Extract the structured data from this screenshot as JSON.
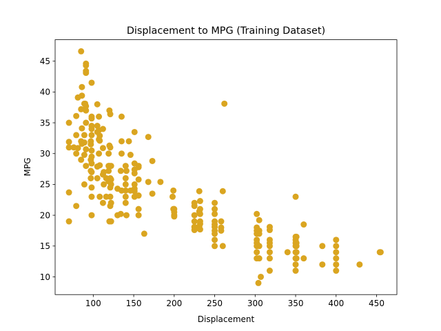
{
  "chart_data": {
    "type": "scatter",
    "title": "Displacement to MPG (Training Dataset)",
    "xlabel": "Displacement",
    "ylabel": "MPG",
    "xlim": [
      52.9,
      475.1
    ],
    "ylim": [
      7.12,
      48.48
    ],
    "x_ticks": [
      100,
      150,
      200,
      250,
      300,
      350,
      400,
      450
    ],
    "y_ticks": [
      10,
      15,
      20,
      25,
      30,
      35,
      40,
      45
    ],
    "grid": false,
    "legend": "none",
    "marker_color": "#daa520",
    "points": [
      [
        85,
        46.6
      ],
      [
        91,
        44.6
      ],
      [
        91,
        44.3
      ],
      [
        91,
        43.4
      ],
      [
        91,
        43.1
      ],
      [
        98,
        41.5
      ],
      [
        86,
        40.8
      ],
      [
        86,
        39.4
      ],
      [
        81,
        39.1
      ],
      [
        89,
        38.1
      ],
      [
        91,
        37.7
      ],
      [
        90,
        38.1
      ],
      [
        105,
        38.0
      ],
      [
        262,
        38.1
      ],
      [
        85,
        37.2
      ],
      [
        91,
        37.0
      ],
      [
        120,
        37.0
      ],
      [
        121,
        36.4
      ],
      [
        79,
        36.1
      ],
      [
        98,
        36.0
      ],
      [
        107,
        36.0
      ],
      [
        135,
        36.0
      ],
      [
        98,
        35.7
      ],
      [
        70,
        35.0
      ],
      [
        91,
        35.0
      ],
      [
        98,
        34.5
      ],
      [
        105,
        34.5
      ],
      [
        86,
        34.1
      ],
      [
        98,
        34.0
      ],
      [
        112,
        34.0
      ],
      [
        107,
        33.8
      ],
      [
        105,
        33.5
      ],
      [
        151,
        33.5
      ],
      [
        89,
        33.0
      ],
      [
        98,
        33.0
      ],
      [
        108,
        32.9
      ],
      [
        79,
        33.0
      ],
      [
        85,
        32.0
      ],
      [
        97,
        32.0
      ],
      [
        107,
        32.3
      ],
      [
        135,
        32.0
      ],
      [
        168,
        32.7
      ],
      [
        144,
        32.0
      ],
      [
        70,
        31.9
      ],
      [
        89,
        31.8
      ],
      [
        108,
        32.1
      ],
      [
        97,
        31.5
      ],
      [
        86,
        31.6
      ],
      [
        120,
        31.3
      ],
      [
        121,
        31.0
      ],
      [
        112,
        30.9
      ],
      [
        70,
        31.0
      ],
      [
        76,
        31.0
      ],
      [
        81,
        30.9
      ],
      [
        91,
        30.7
      ],
      [
        98,
        30.5
      ],
      [
        107,
        30.0
      ],
      [
        119,
        30.0
      ],
      [
        135,
        30.0
      ],
      [
        146,
        29.8
      ],
      [
        79,
        30.0
      ],
      [
        89,
        29.8
      ],
      [
        97,
        29.0
      ],
      [
        98,
        29.5
      ],
      [
        85,
        29.0
      ],
      [
        98,
        28.4
      ],
      [
        108,
        28.1
      ],
      [
        119,
        28.0
      ],
      [
        120,
        28.0
      ],
      [
        122,
        28.0
      ],
      [
        140,
        28.0
      ],
      [
        151,
        28.4
      ],
      [
        156,
        28.0
      ],
      [
        173,
        28.8
      ],
      [
        91,
        28.0
      ],
      [
        105,
        27.9
      ],
      [
        98,
        27.0
      ],
      [
        97,
        27.2
      ],
      [
        113,
        27.0
      ],
      [
        119,
        27.2
      ],
      [
        134,
        27.2
      ],
      [
        141,
        27.2
      ],
      [
        151,
        27.4
      ],
      [
        156,
        27.8
      ],
      [
        151,
        26.8
      ],
      [
        112,
        26.6
      ],
      [
        116,
        26.0
      ],
      [
        121,
        26.0
      ],
      [
        105,
        26.0
      ],
      [
        140,
        26.0
      ],
      [
        97,
        26.0
      ],
      [
        122,
        25.8
      ],
      [
        156,
        25.8
      ],
      [
        168,
        25.4
      ],
      [
        183,
        25.4
      ],
      [
        119,
        25.5
      ],
      [
        113,
        25.0
      ],
      [
        89,
        25.0
      ],
      [
        122,
        25.0
      ],
      [
        140,
        25.0
      ],
      [
        151,
        25.0
      ],
      [
        98,
        24.5
      ],
      [
        121,
        24.5
      ],
      [
        130,
        24.3
      ],
      [
        135,
        24.0
      ],
      [
        140,
        24.0
      ],
      [
        151,
        24.3
      ],
      [
        146,
        24.0
      ],
      [
        199,
        24.0
      ],
      [
        151,
        23.9
      ],
      [
        231,
        23.9
      ],
      [
        260,
        23.9
      ],
      [
        70,
        23.7
      ],
      [
        98,
        23.0
      ],
      [
        108,
        23.0
      ],
      [
        116,
        23.0
      ],
      [
        121,
        23.0
      ],
      [
        140,
        23.0
      ],
      [
        151,
        23.0
      ],
      [
        156,
        23.2
      ],
      [
        173,
        23.5
      ],
      [
        198,
        23.0
      ],
      [
        350,
        23.0
      ],
      [
        122,
        22.0
      ],
      [
        140,
        22.0
      ],
      [
        225,
        22.0
      ],
      [
        250,
        22.0
      ],
      [
        232,
        22.3
      ],
      [
        112,
        22.0
      ],
      [
        79,
        21.5
      ],
      [
        121,
        21.5
      ],
      [
        156,
        21.0
      ],
      [
        200,
        21.0
      ],
      [
        225,
        21.5
      ],
      [
        232,
        21.0
      ],
      [
        250,
        21.0
      ],
      [
        199,
        21.0
      ],
      [
        141,
        20.0
      ],
      [
        98,
        20.0
      ],
      [
        130,
        20.0
      ],
      [
        134,
        20.2
      ],
      [
        156,
        20.0
      ],
      [
        200,
        20.0
      ],
      [
        225,
        20.0
      ],
      [
        232,
        20.2
      ],
      [
        200,
        20.5
      ],
      [
        200,
        19.8
      ],
      [
        231,
        20.6
      ],
      [
        250,
        20.2
      ],
      [
        302,
        20.2
      ],
      [
        70,
        19.0
      ],
      [
        120,
        19.0
      ],
      [
        122,
        19.0
      ],
      [
        225,
        19.0
      ],
      [
        232,
        19.0
      ],
      [
        250,
        19.0
      ],
      [
        258,
        19.0
      ],
      [
        305,
        19.2
      ],
      [
        250,
        18.5
      ],
      [
        232,
        18.6
      ],
      [
        250,
        18.1
      ],
      [
        225,
        18.1
      ],
      [
        231,
        18.2
      ],
      [
        258,
        18.0
      ],
      [
        302,
        18.0
      ],
      [
        318,
        18.1
      ],
      [
        360,
        18.5
      ],
      [
        225,
        17.6
      ],
      [
        232,
        17.7
      ],
      [
        258,
        17.5
      ],
      [
        250,
        17.5
      ],
      [
        302,
        17.5
      ],
      [
        305,
        17.5
      ],
      [
        318,
        17.6
      ],
      [
        250,
        17.0
      ],
      [
        163,
        17.0
      ],
      [
        302,
        17.0
      ],
      [
        305,
        17.0
      ],
      [
        350,
        16.5
      ],
      [
        351,
        16.5
      ],
      [
        400,
        16.0
      ],
      [
        318,
        16.0
      ],
      [
        302,
        16.0
      ],
      [
        250,
        16.0
      ],
      [
        350,
        16.0
      ],
      [
        302,
        15.5
      ],
      [
        318,
        15.5
      ],
      [
        350,
        15.5
      ],
      [
        351,
        15.5
      ],
      [
        250,
        15.0
      ],
      [
        302,
        15.0
      ],
      [
        305,
        15.0
      ],
      [
        318,
        15.0
      ],
      [
        350,
        15.0
      ],
      [
        351,
        15.0
      ],
      [
        383,
        15.0
      ],
      [
        400,
        15.0
      ],
      [
        260,
        15.0
      ],
      [
        302,
        14.0
      ],
      [
        318,
        14.0
      ],
      [
        340,
        14.0
      ],
      [
        350,
        14.0
      ],
      [
        351,
        14.0
      ],
      [
        400,
        14.0
      ],
      [
        455,
        14.0
      ],
      [
        454,
        14.0
      ],
      [
        302,
        13.0
      ],
      [
        305,
        13.0
      ],
      [
        318,
        13.0
      ],
      [
        350,
        13.0
      ],
      [
        351,
        13.0
      ],
      [
        360,
        13.0
      ],
      [
        400,
        13.0
      ],
      [
        350,
        12.0
      ],
      [
        383,
        12.0
      ],
      [
        400,
        12.0
      ],
      [
        429,
        12.0
      ],
      [
        318,
        11.0
      ],
      [
        350,
        11.0
      ],
      [
        400,
        11.0
      ],
      [
        307,
        10.0
      ],
      [
        304,
        9.0
      ]
    ]
  }
}
